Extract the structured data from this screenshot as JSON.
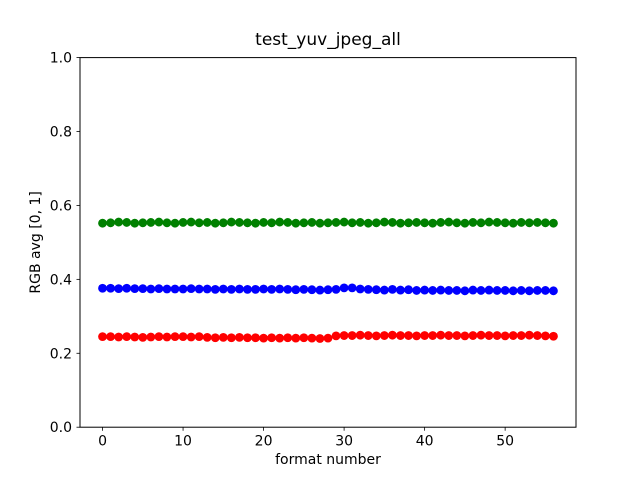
{
  "figure": {
    "background": "#ffffff",
    "spine_color": "#000000",
    "text_color": "#000000"
  },
  "chart_data": {
    "type": "scatter",
    "title": "test_yuv_jpeg_all",
    "xlabel": "format number",
    "ylabel": "RGB avg [0, 1]",
    "grid": false,
    "legend": "none",
    "marker": "o",
    "xlim": [
      -2.8,
      58.8
    ],
    "ylim": [
      0.0,
      1.0
    ],
    "xticks": [
      0,
      10,
      20,
      30,
      40,
      50
    ],
    "yticks": [
      0.0,
      0.2,
      0.4,
      0.6,
      0.8,
      1.0
    ],
    "x": [
      0,
      1,
      2,
      3,
      4,
      5,
      6,
      7,
      8,
      9,
      10,
      11,
      12,
      13,
      14,
      15,
      16,
      17,
      18,
      19,
      20,
      21,
      22,
      23,
      24,
      25,
      26,
      27,
      28,
      29,
      30,
      31,
      32,
      33,
      34,
      35,
      36,
      37,
      38,
      39,
      40,
      41,
      42,
      43,
      44,
      45,
      46,
      47,
      48,
      49,
      50,
      51,
      52,
      53,
      54,
      55,
      56
    ],
    "series": [
      {
        "name": "green",
        "color": "#008000",
        "values": [
          0.552,
          0.553,
          0.555,
          0.554,
          0.552,
          0.553,
          0.554,
          0.555,
          0.553,
          0.552,
          0.554,
          0.555,
          0.553,
          0.554,
          0.552,
          0.553,
          0.555,
          0.554,
          0.553,
          0.552,
          0.554,
          0.553,
          0.555,
          0.554,
          0.552,
          0.553,
          0.554,
          0.552,
          0.553,
          0.554,
          0.555,
          0.553,
          0.554,
          0.552,
          0.553,
          0.555,
          0.554,
          0.552,
          0.553,
          0.554,
          0.553,
          0.552,
          0.554,
          0.555,
          0.553,
          0.552,
          0.554,
          0.553,
          0.555,
          0.554,
          0.553,
          0.552,
          0.554,
          0.553,
          0.554,
          0.553,
          0.552
        ]
      },
      {
        "name": "blue",
        "color": "#0000ff",
        "values": [
          0.376,
          0.376,
          0.375,
          0.376,
          0.375,
          0.375,
          0.374,
          0.375,
          0.374,
          0.374,
          0.374,
          0.375,
          0.374,
          0.374,
          0.373,
          0.374,
          0.373,
          0.374,
          0.373,
          0.373,
          0.374,
          0.373,
          0.374,
          0.373,
          0.372,
          0.373,
          0.372,
          0.371,
          0.372,
          0.373,
          0.377,
          0.377,
          0.374,
          0.373,
          0.372,
          0.371,
          0.373,
          0.371,
          0.372,
          0.37,
          0.371,
          0.37,
          0.371,
          0.37,
          0.37,
          0.369,
          0.371,
          0.37,
          0.371,
          0.37,
          0.37,
          0.369,
          0.37,
          0.369,
          0.37,
          0.37,
          0.369
        ]
      },
      {
        "name": "red",
        "color": "#ff0000",
        "values": [
          0.245,
          0.245,
          0.244,
          0.245,
          0.244,
          0.243,
          0.244,
          0.245,
          0.244,
          0.245,
          0.245,
          0.244,
          0.245,
          0.243,
          0.242,
          0.243,
          0.242,
          0.243,
          0.242,
          0.242,
          0.241,
          0.242,
          0.241,
          0.242,
          0.241,
          0.242,
          0.241,
          0.24,
          0.241,
          0.247,
          0.248,
          0.248,
          0.249,
          0.248,
          0.247,
          0.248,
          0.249,
          0.248,
          0.248,
          0.247,
          0.248,
          0.248,
          0.249,
          0.248,
          0.248,
          0.247,
          0.248,
          0.249,
          0.248,
          0.248,
          0.247,
          0.248,
          0.248,
          0.249,
          0.248,
          0.247,
          0.246
        ]
      }
    ]
  }
}
